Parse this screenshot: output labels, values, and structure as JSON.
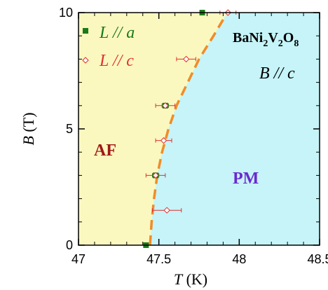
{
  "chart_data": {
    "type": "scatter",
    "title": "",
    "xlabel_var": "T",
    "xlabel_unit": " (K)",
    "ylabel_var": "B",
    "ylabel_unit": " (T)",
    "xlim": [
      47.0,
      48.5
    ],
    "ylim": [
      0,
      10
    ],
    "x_ticks": [
      47,
      47.5,
      48,
      48.5
    ],
    "x_tick_labels": [
      "47",
      "47.5",
      "48",
      "48.5"
    ],
    "y_ticks": [
      0,
      5,
      10
    ],
    "y_tick_labels": [
      "0",
      "5",
      "10"
    ],
    "grid": false,
    "legend_position": "top-left",
    "series": [
      {
        "name_var": "L",
        "name_rest": " // a",
        "color": "#1a7a1a",
        "marker": "filled-square",
        "points": [
          {
            "x": 47.42,
            "y": 0,
            "xerr": 0.01
          },
          {
            "x": 47.48,
            "y": 3,
            "xerr": 0.02
          },
          {
            "x": 47.54,
            "y": 6,
            "xerr": 0.02
          },
          {
            "x": 47.77,
            "y": 10,
            "xerr": 0
          }
        ]
      },
      {
        "name_var": "L",
        "name_rest": " // c",
        "color": "#e03030",
        "marker": "open-diamond",
        "points": [
          {
            "x": 47.48,
            "y": 3,
            "xerr": 0.06
          },
          {
            "x": 47.55,
            "y": 1.5,
            "xerr": 0.09
          },
          {
            "x": 47.53,
            "y": 4.5,
            "xerr": 0.05
          },
          {
            "x": 47.54,
            "y": 6,
            "xerr": 0.06
          },
          {
            "x": 47.67,
            "y": 8,
            "xerr": 0.06
          },
          {
            "x": 47.93,
            "y": 10,
            "xerr": 0.05
          }
        ]
      }
    ],
    "boundary_curve": {
      "color": "#f08c28",
      "style": "dashed",
      "x": [
        47.445,
        47.455,
        47.47,
        47.49,
        47.52,
        47.56,
        47.61,
        47.68,
        47.75,
        47.84,
        47.9
      ],
      "y": [
        0,
        1,
        2,
        3,
        4,
        5,
        6,
        7,
        8,
        9,
        9.7
      ]
    },
    "regions": [
      {
        "label": "AF",
        "color": "#a01818",
        "fill": "#fbf8bf"
      },
      {
        "label": "PM",
        "color": "#6a2ad0",
        "fill": "#c6f4f8"
      }
    ],
    "annotations": {
      "compound_parts": [
        "BaNi",
        "2",
        "V",
        "2",
        "O",
        "8"
      ],
      "field_var": "B",
      "field_rest": " // c"
    }
  }
}
